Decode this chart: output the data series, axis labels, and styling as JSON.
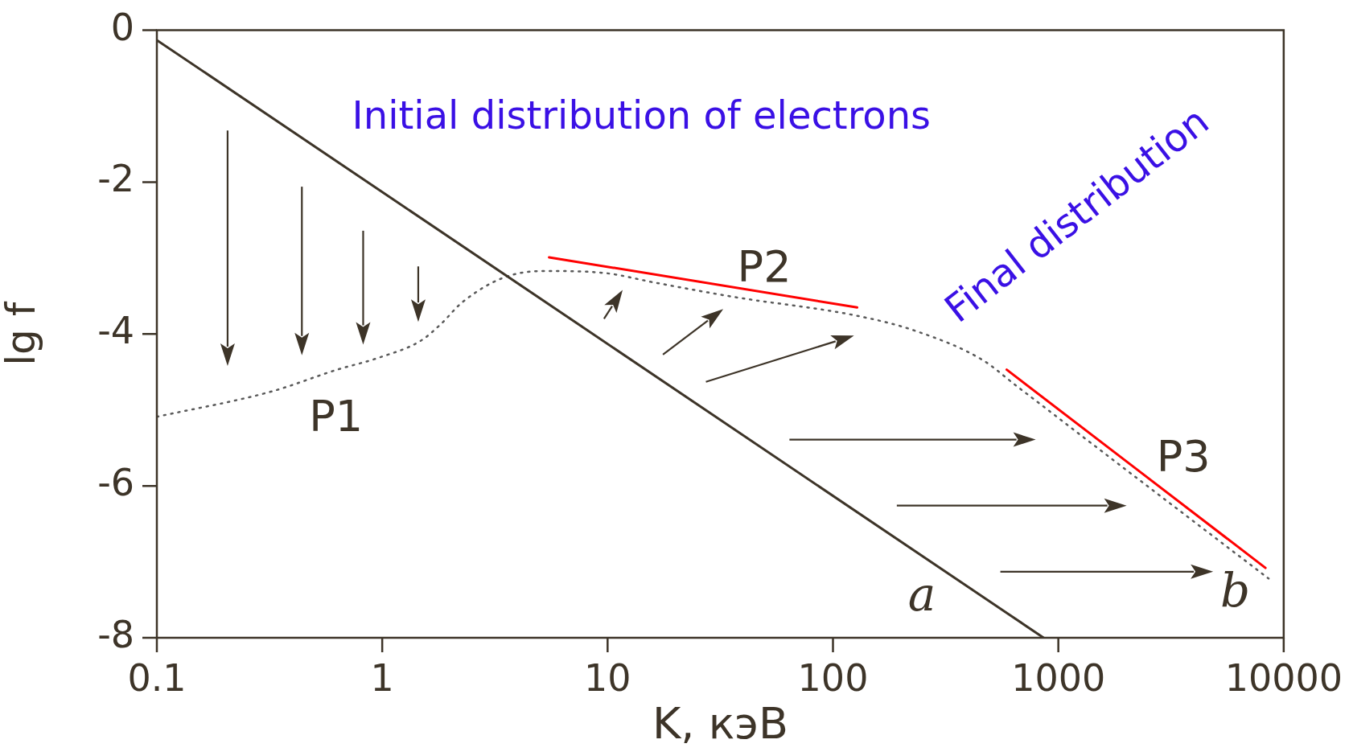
{
  "chart_data": {
    "type": "line",
    "xlabel": "K, кэВ",
    "ylabel": "lg f",
    "log": "x",
    "grid": false,
    "line_style": "solid",
    "xlim": [
      0.1,
      10000
    ],
    "xticks": [
      0.1,
      1,
      10,
      100,
      1000,
      10000
    ],
    "ylim": [
      -8,
      0
    ],
    "yticks": [
      -8,
      -6,
      -4,
      -2,
      0
    ],
    "series": [
      {
        "color": "#3d3428",
        "x": [
          0.1,
          860
        ],
        "values": [
          -0.13,
          -8
        ]
      },
      {
        "color": "#5a5a5a",
        "line_style": "dotted",
        "x": [
          0.1,
          0.32,
          0.63,
          0.97,
          1.48,
          1.82,
          2.25,
          3.44,
          5.25,
          9.9,
          16,
          36,
          128,
          233,
          460,
          650,
          1650,
          8570
        ],
        "values": [
          -5.09,
          -4.76,
          -4.47,
          -4.31,
          -4.09,
          -3.87,
          -3.59,
          -3.26,
          -3.17,
          -3.2,
          -3.32,
          -3.51,
          -3.76,
          -3.96,
          -4.34,
          -4.68,
          -5.6,
          -7.22
        ]
      },
      {
        "color": "#ff0000",
        "x": [
          5.5,
          128
        ],
        "values": [
          -2.99,
          -3.65
        ]
      },
      {
        "color": "#ff0000",
        "x": [
          590,
          8300
        ],
        "values": [
          -4.47,
          -7.08
        ]
      }
    ],
    "annotations": [
      "Initial distribution of electrons",
      "Final distribution",
      "P1",
      "P2",
      "P3",
      "a",
      "b"
    ]
  }
}
